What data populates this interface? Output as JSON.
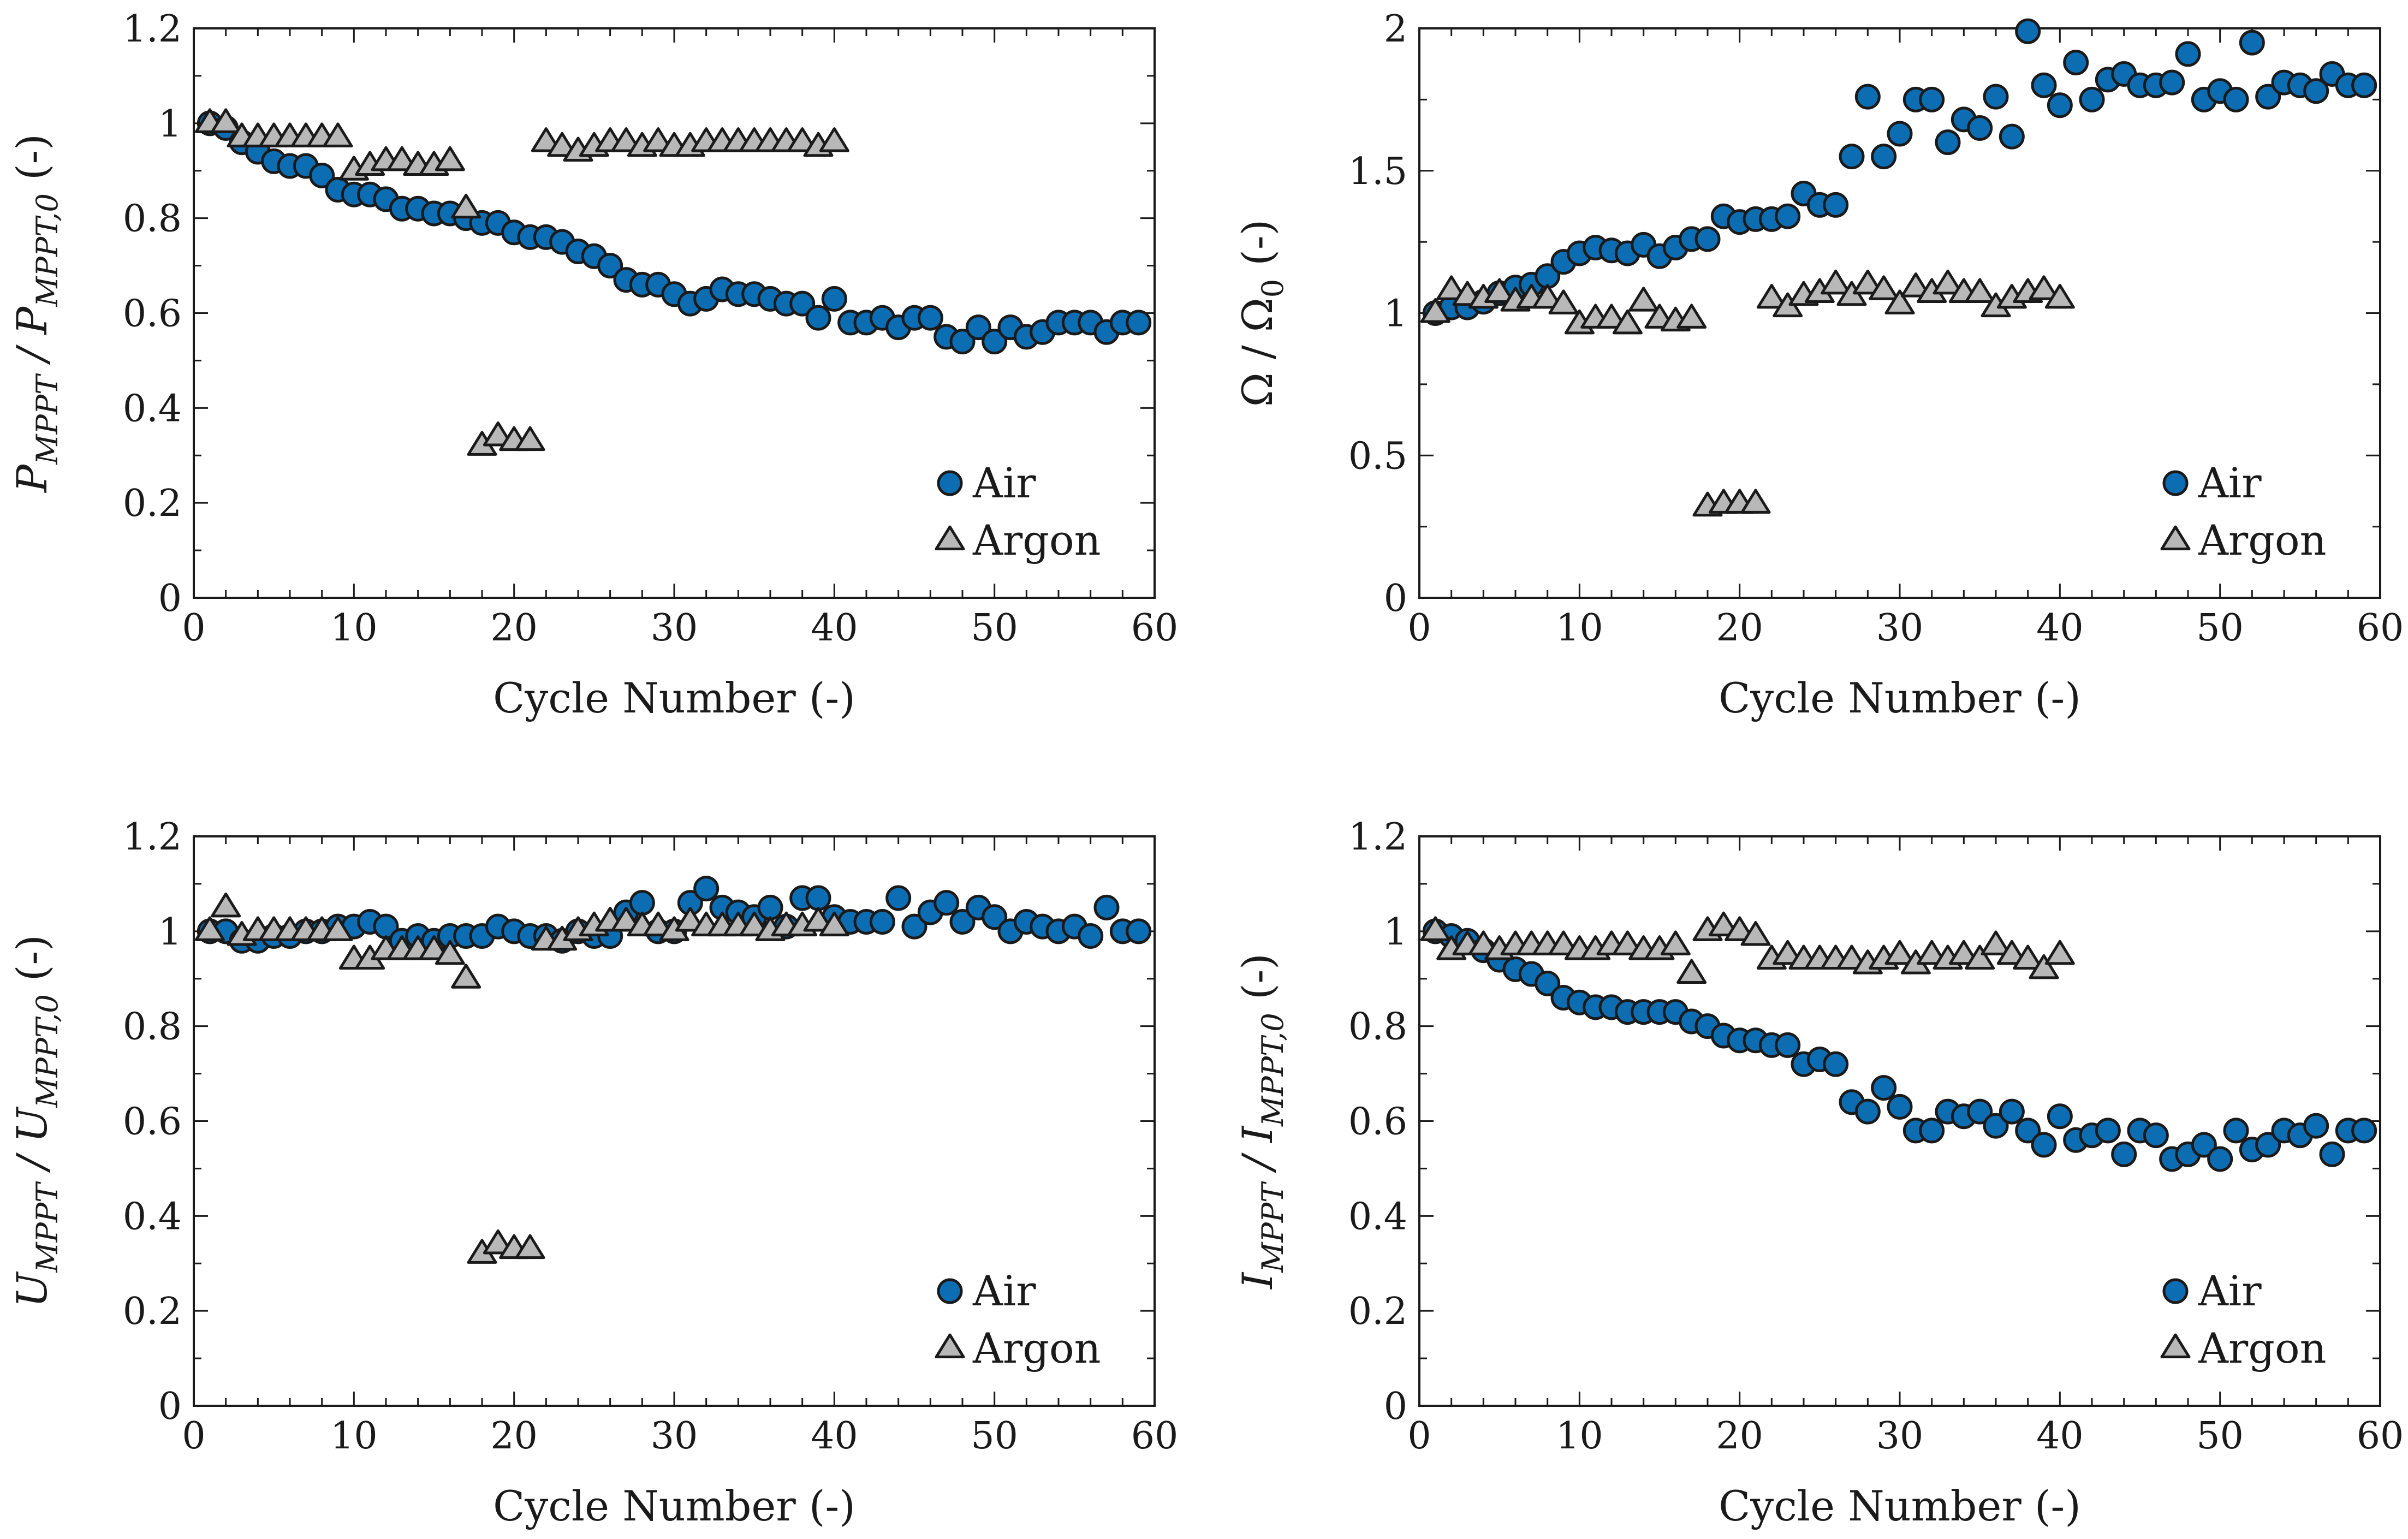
{
  "figure": {
    "legend_position": "bottom-right",
    "colors": {
      "air": "#0d6db3",
      "argon": "#b8b8b8",
      "axes": "#1a1a1a"
    }
  },
  "chart_data": [
    {
      "id": "power",
      "type": "scatter",
      "xlabel": "Cycle Number (-)",
      "ylabel": {
        "parts": [
          {
            "t": "P"
          },
          {
            "t": "MPPT",
            "sub": true
          },
          {
            "t": " / "
          },
          {
            "t": "P"
          },
          {
            "t": "MPPT,0",
            "sub": true
          },
          {
            "t": " (-)",
            "roman": true
          }
        ]
      },
      "xlim": [
        0,
        60
      ],
      "ylim": [
        0,
        1.2
      ],
      "xticks": [
        0,
        10,
        20,
        30,
        40,
        50,
        60
      ],
      "yticks": [
        0,
        0.2,
        0.4,
        0.6,
        0.8,
        1,
        1.2
      ],
      "ytick_labels": [
        "0",
        "0.2",
        "0.4",
        "0.6",
        "0.8",
        "1",
        "1.2"
      ],
      "series": [
        {
          "name": "Air",
          "marker": "circle",
          "x": [
            1,
            2,
            3,
            4,
            5,
            6,
            7,
            8,
            9,
            10,
            11,
            12,
            13,
            14,
            15,
            16,
            17,
            18,
            19,
            20,
            21,
            22,
            23,
            24,
            25,
            26,
            27,
            28,
            29,
            30,
            31,
            32,
            33,
            34,
            35,
            36,
            37,
            38,
            39,
            40,
            41,
            42,
            43,
            44,
            45,
            46,
            47,
            48,
            49,
            50,
            51,
            52,
            53,
            54,
            55,
            56,
            57,
            58,
            59
          ],
          "y": [
            1.0,
            0.99,
            0.96,
            0.94,
            0.92,
            0.91,
            0.91,
            0.89,
            0.86,
            0.85,
            0.85,
            0.84,
            0.82,
            0.82,
            0.81,
            0.81,
            0.8,
            0.79,
            0.79,
            0.77,
            0.76,
            0.76,
            0.75,
            0.73,
            0.72,
            0.7,
            0.67,
            0.66,
            0.66,
            0.64,
            0.62,
            0.63,
            0.65,
            0.64,
            0.64,
            0.63,
            0.62,
            0.62,
            0.59,
            0.63,
            0.58,
            0.58,
            0.59,
            0.57,
            0.59,
            0.59,
            0.55,
            0.54,
            0.57,
            0.54,
            0.57,
            0.55,
            0.56,
            0.58,
            0.58,
            0.58,
            0.56,
            0.58,
            0.58
          ]
        },
        {
          "name": "Argon",
          "marker": "triangle",
          "x": [
            1,
            2,
            3,
            4,
            5,
            6,
            7,
            8,
            9,
            10,
            11,
            12,
            13,
            14,
            15,
            16,
            17,
            18,
            19,
            20,
            21,
            22,
            23,
            24,
            25,
            26,
            27,
            28,
            29,
            30,
            31,
            32,
            33,
            34,
            35,
            36,
            37,
            38,
            39,
            40
          ],
          "y": [
            1.0,
            1.0,
            0.97,
            0.97,
            0.97,
            0.97,
            0.97,
            0.97,
            0.97,
            0.9,
            0.91,
            0.92,
            0.92,
            0.91,
            0.91,
            0.92,
            0.82,
            0.32,
            0.34,
            0.33,
            0.33,
            0.96,
            0.95,
            0.94,
            0.95,
            0.96,
            0.96,
            0.95,
            0.96,
            0.95,
            0.95,
            0.96,
            0.96,
            0.96,
            0.96,
            0.96,
            0.96,
            0.96,
            0.95,
            0.96
          ]
        }
      ]
    },
    {
      "id": "resistance",
      "type": "scatter",
      "xlabel": "Cycle Number (-)",
      "ylabel": {
        "parts": [
          {
            "t": "Ω",
            "roman": true
          },
          {
            "t": " / ",
            "roman": true
          },
          {
            "t": "Ω",
            "roman": true
          },
          {
            "t": "0",
            "sub": true,
            "roman": true
          },
          {
            "t": " (-)",
            "roman": true
          }
        ]
      },
      "xlim": [
        0,
        60
      ],
      "ylim": [
        0,
        2
      ],
      "xticks": [
        0,
        10,
        20,
        30,
        40,
        50,
        60
      ],
      "yticks": [
        0,
        0.5,
        1,
        1.5,
        2
      ],
      "ytick_labels": [
        "0",
        "0.5",
        "1",
        "1.5",
        "2"
      ],
      "series": [
        {
          "name": "Air",
          "marker": "circle",
          "x": [
            1,
            2,
            3,
            4,
            5,
            6,
            7,
            8,
            9,
            10,
            11,
            12,
            13,
            14,
            15,
            16,
            17,
            18,
            19,
            20,
            21,
            22,
            23,
            24,
            25,
            26,
            27,
            28,
            29,
            30,
            31,
            32,
            33,
            34,
            35,
            36,
            37,
            38,
            39,
            40,
            41,
            42,
            43,
            44,
            45,
            46,
            47,
            48,
            49,
            50,
            51,
            52,
            53,
            54,
            55,
            56,
            57,
            58,
            59
          ],
          "y": [
            1.0,
            1.02,
            1.02,
            1.04,
            1.07,
            1.09,
            1.1,
            1.13,
            1.18,
            1.21,
            1.23,
            1.22,
            1.21,
            1.24,
            1.2,
            1.23,
            1.26,
            1.26,
            1.34,
            1.32,
            1.33,
            1.33,
            1.34,
            1.42,
            1.38,
            1.38,
            1.55,
            1.76,
            1.55,
            1.63,
            1.75,
            1.75,
            1.6,
            1.68,
            1.65,
            1.76,
            1.62,
            1.99,
            1.8,
            1.73,
            1.88,
            1.75,
            1.82,
            1.84,
            1.8,
            1.8,
            1.81,
            1.91,
            1.75,
            1.78,
            1.75,
            1.95,
            1.76,
            1.81,
            1.8,
            1.78,
            1.84,
            1.8,
            1.8
          ]
        },
        {
          "name": "Argon",
          "marker": "triangle",
          "x": [
            1,
            2,
            3,
            4,
            5,
            6,
            7,
            8,
            9,
            10,
            11,
            12,
            13,
            14,
            15,
            16,
            17,
            18,
            19,
            20,
            21,
            22,
            23,
            24,
            25,
            26,
            27,
            28,
            29,
            30,
            31,
            32,
            33,
            34,
            35,
            36,
            37,
            38,
            39,
            40
          ],
          "y": [
            1.0,
            1.08,
            1.06,
            1.05,
            1.07,
            1.04,
            1.05,
            1.05,
            1.03,
            0.96,
            0.98,
            0.98,
            0.96,
            1.04,
            0.98,
            0.97,
            0.98,
            0.32,
            0.33,
            0.33,
            0.33,
            1.05,
            1.02,
            1.06,
            1.07,
            1.1,
            1.06,
            1.1,
            1.08,
            1.03,
            1.09,
            1.07,
            1.1,
            1.07,
            1.07,
            1.02,
            1.05,
            1.07,
            1.08,
            1.05
          ]
        }
      ]
    },
    {
      "id": "voltage",
      "type": "scatter",
      "xlabel": "Cycle Number (-)",
      "ylabel": {
        "parts": [
          {
            "t": "U"
          },
          {
            "t": "MPPT",
            "sub": true
          },
          {
            "t": " / "
          },
          {
            "t": "U"
          },
          {
            "t": "MPPT,0",
            "sub": true
          },
          {
            "t": " (-)",
            "roman": true
          }
        ]
      },
      "xlim": [
        0,
        60
      ],
      "ylim": [
        0,
        1.2
      ],
      "xticks": [
        0,
        10,
        20,
        30,
        40,
        50,
        60
      ],
      "yticks": [
        0,
        0.2,
        0.4,
        0.6,
        0.8,
        1,
        1.2
      ],
      "ytick_labels": [
        "0",
        "0.2",
        "0.4",
        "0.6",
        "0.8",
        "1",
        "1.2"
      ],
      "series": [
        {
          "name": "Air",
          "marker": "circle",
          "x": [
            1,
            2,
            3,
            4,
            5,
            6,
            7,
            8,
            9,
            10,
            11,
            12,
            13,
            14,
            15,
            16,
            17,
            18,
            19,
            20,
            21,
            22,
            23,
            24,
            25,
            26,
            27,
            28,
            29,
            30,
            31,
            32,
            33,
            34,
            35,
            36,
            37,
            38,
            39,
            40,
            41,
            42,
            43,
            44,
            45,
            46,
            47,
            48,
            49,
            50,
            51,
            52,
            53,
            54,
            55,
            56,
            57,
            58,
            59
          ],
          "y": [
            1.0,
            1.0,
            0.98,
            0.98,
            0.99,
            0.99,
            1.0,
            1.0,
            1.01,
            1.01,
            1.02,
            1.01,
            0.98,
            0.99,
            0.98,
            0.99,
            0.99,
            0.99,
            1.01,
            1.0,
            0.99,
            0.99,
            0.98,
            1.0,
            0.99,
            0.99,
            1.04,
            1.06,
            1.0,
            1.0,
            1.06,
            1.09,
            1.05,
            1.04,
            1.03,
            1.05,
            1.01,
            1.07,
            1.07,
            1.03,
            1.02,
            1.02,
            1.02,
            1.07,
            1.01,
            1.04,
            1.06,
            1.02,
            1.05,
            1.03,
            1.0,
            1.02,
            1.01,
            1.0,
            1.01,
            0.99,
            1.05,
            1.0,
            1.0
          ]
        },
        {
          "name": "Argon",
          "marker": "triangle",
          "x": [
            1,
            2,
            3,
            4,
            5,
            6,
            7,
            8,
            9,
            10,
            11,
            12,
            13,
            14,
            15,
            16,
            17,
            18,
            19,
            20,
            21,
            22,
            23,
            24,
            25,
            26,
            27,
            28,
            29,
            30,
            31,
            32,
            33,
            34,
            35,
            36,
            37,
            38,
            39,
            40
          ],
          "y": [
            1.0,
            1.05,
            0.99,
            1.0,
            1.0,
            1.0,
            1.0,
            1.0,
            1.0,
            0.94,
            0.94,
            0.96,
            0.96,
            0.96,
            0.96,
            0.95,
            0.9,
            0.32,
            0.34,
            0.33,
            0.33,
            0.98,
            0.98,
            1.0,
            1.01,
            1.02,
            1.02,
            1.01,
            1.01,
            1.0,
            1.02,
            1.01,
            1.01,
            1.01,
            1.01,
            1.0,
            1.01,
            1.01,
            1.02,
            1.01
          ]
        }
      ]
    },
    {
      "id": "current",
      "type": "scatter",
      "xlabel": "Cycle Number (-)",
      "ylabel": {
        "parts": [
          {
            "t": "I"
          },
          {
            "t": "MPPT",
            "sub": true
          },
          {
            "t": " / "
          },
          {
            "t": "I"
          },
          {
            "t": "MPPT,0",
            "sub": true
          },
          {
            "t": " (-)",
            "roman": true
          }
        ]
      },
      "xlim": [
        0,
        60
      ],
      "ylim": [
        0,
        1.2
      ],
      "xticks": [
        0,
        10,
        20,
        30,
        40,
        50,
        60
      ],
      "yticks": [
        0,
        0.2,
        0.4,
        0.6,
        0.8,
        1,
        1.2
      ],
      "ytick_labels": [
        "0",
        "0.2",
        "0.4",
        "0.6",
        "0.8",
        "1",
        "1.2"
      ],
      "series": [
        {
          "name": "Air",
          "marker": "circle",
          "x": [
            1,
            2,
            3,
            4,
            5,
            6,
            7,
            8,
            9,
            10,
            11,
            12,
            13,
            14,
            15,
            16,
            17,
            18,
            19,
            20,
            21,
            22,
            23,
            24,
            25,
            26,
            27,
            28,
            29,
            30,
            31,
            32,
            33,
            34,
            35,
            36,
            37,
            38,
            39,
            40,
            41,
            42,
            43,
            44,
            45,
            46,
            47,
            48,
            49,
            50,
            51,
            52,
            53,
            54,
            55,
            56,
            57,
            58,
            59
          ],
          "y": [
            1.0,
            0.99,
            0.98,
            0.96,
            0.94,
            0.92,
            0.91,
            0.89,
            0.86,
            0.85,
            0.84,
            0.84,
            0.83,
            0.83,
            0.83,
            0.83,
            0.81,
            0.8,
            0.78,
            0.77,
            0.77,
            0.76,
            0.76,
            0.72,
            0.73,
            0.72,
            0.64,
            0.62,
            0.67,
            0.63,
            0.58,
            0.58,
            0.62,
            0.61,
            0.62,
            0.59,
            0.62,
            0.58,
            0.55,
            0.61,
            0.56,
            0.57,
            0.58,
            0.53,
            0.58,
            0.57,
            0.52,
            0.53,
            0.55,
            0.52,
            0.58,
            0.54,
            0.55,
            0.58,
            0.57,
            0.59,
            0.53,
            0.58,
            0.58
          ]
        },
        {
          "name": "Argon",
          "marker": "triangle",
          "x": [
            1,
            2,
            3,
            4,
            5,
            6,
            7,
            8,
            9,
            10,
            11,
            12,
            13,
            14,
            15,
            16,
            17,
            18,
            19,
            20,
            21,
            22,
            23,
            24,
            25,
            26,
            27,
            28,
            29,
            30,
            31,
            32,
            33,
            34,
            35,
            36,
            37,
            38,
            39,
            40
          ],
          "y": [
            1.0,
            0.96,
            0.97,
            0.97,
            0.96,
            0.97,
            0.97,
            0.97,
            0.97,
            0.96,
            0.96,
            0.97,
            0.97,
            0.96,
            0.96,
            0.97,
            0.91,
            1.0,
            1.01,
            1.0,
            0.99,
            0.94,
            0.95,
            0.94,
            0.94,
            0.94,
            0.94,
            0.93,
            0.94,
            0.95,
            0.93,
            0.95,
            0.94,
            0.95,
            0.94,
            0.97,
            0.95,
            0.94,
            0.92,
            0.95
          ]
        }
      ]
    }
  ]
}
